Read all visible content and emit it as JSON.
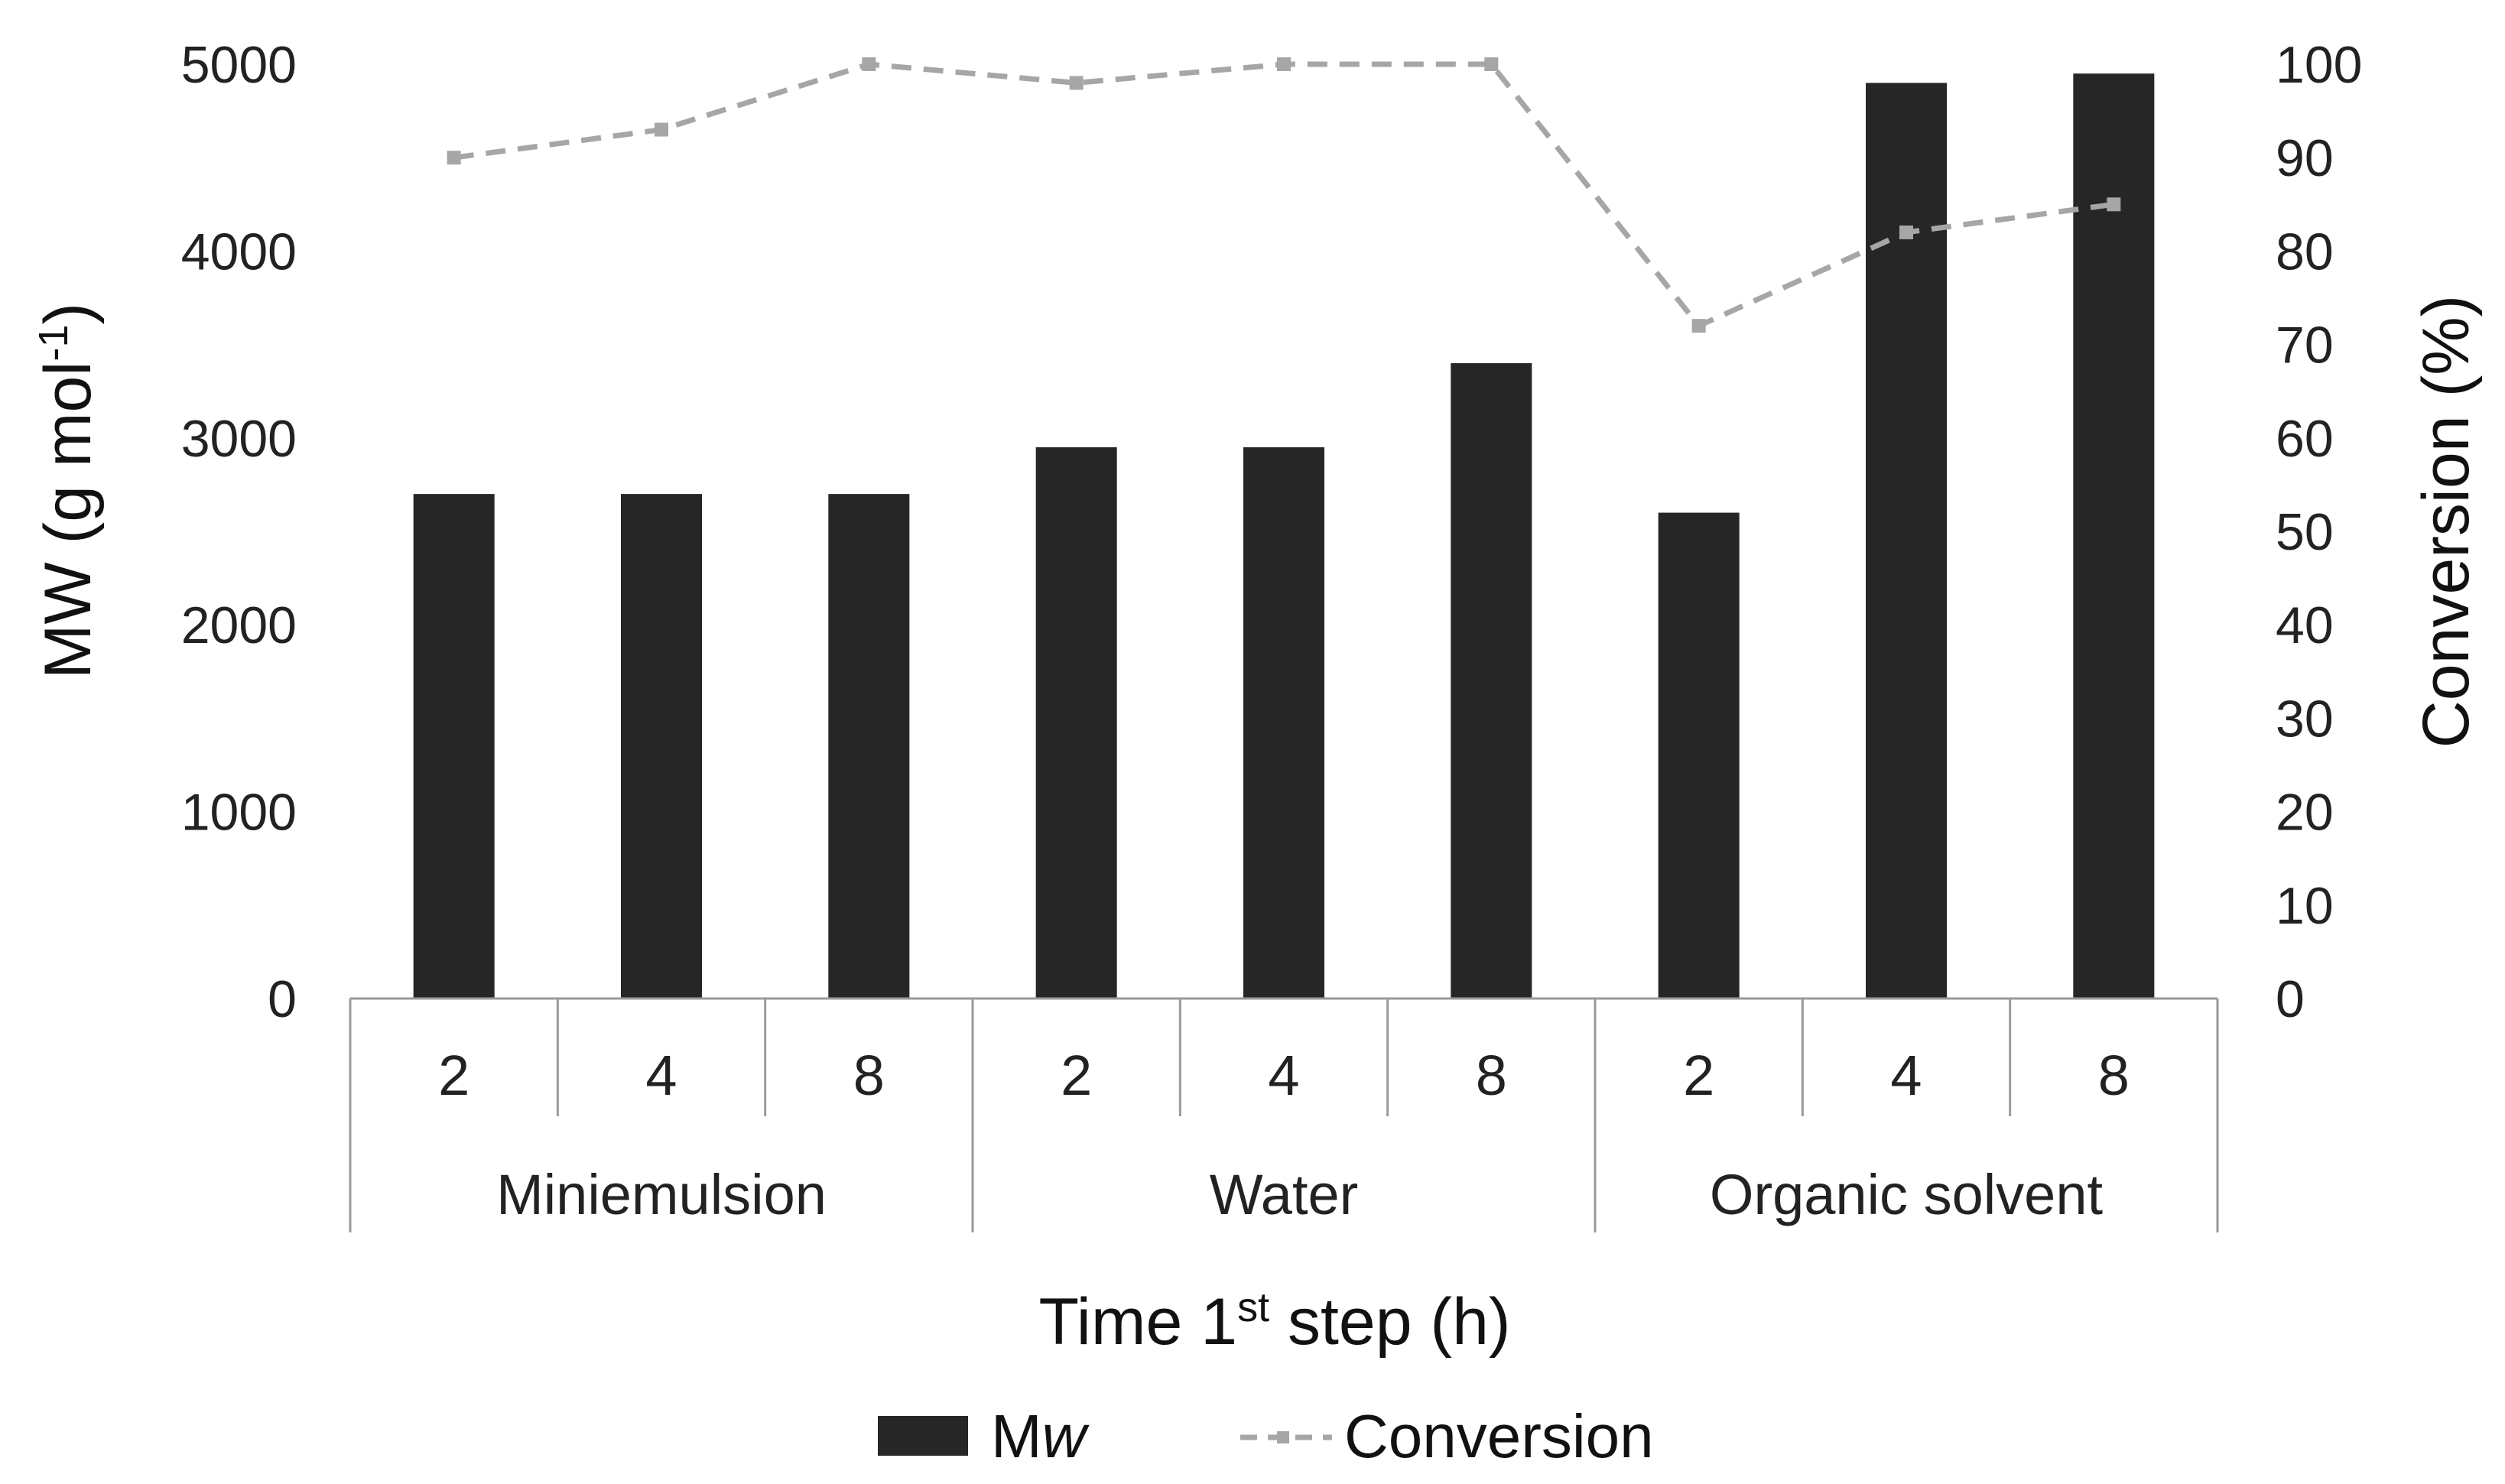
{
  "chart_data": {
    "type": "bar+line",
    "title": "",
    "groups": [
      {
        "name": "Miniemulsion",
        "times": [
          "2",
          "4",
          "8"
        ]
      },
      {
        "name": "Water",
        "times": [
          "2",
          "4",
          "8"
        ]
      },
      {
        "name": "Organic solvent",
        "times": [
          "2",
          "4",
          "8"
        ]
      }
    ],
    "series": [
      {
        "name": "Mw",
        "name_main": "M",
        "name_italic": "w",
        "type": "bar",
        "axis": "left",
        "color": "#262626",
        "values": [
          2700,
          2700,
          2700,
          2950,
          2950,
          3400,
          2600,
          4900,
          4950
        ]
      },
      {
        "name": "Conversion",
        "type": "line",
        "axis": "right",
        "style": "dashed",
        "color": "#a6a6a6",
        "values": [
          90,
          93,
          100,
          98,
          100,
          100,
          72,
          82,
          85
        ]
      }
    ],
    "y_left": {
      "label_main": "MW (g mol",
      "label_sup": "-1",
      "label_end": ")",
      "ylim": [
        0,
        5000
      ],
      "ticks": [
        "0",
        "1000",
        "2000",
        "3000",
        "4000",
        "5000"
      ]
    },
    "y_right": {
      "label": "Conversion (%)",
      "ylim": [
        0,
        100
      ],
      "ticks": [
        "0",
        "10",
        "20",
        "30",
        "40",
        "50",
        "60",
        "70",
        "80",
        "90",
        "100"
      ]
    },
    "x_axis": {
      "label_main": "Time 1",
      "label_sup": "st",
      "label_end": " step (h)"
    },
    "legend": {
      "position": "bottom-center"
    },
    "grid": false
  }
}
